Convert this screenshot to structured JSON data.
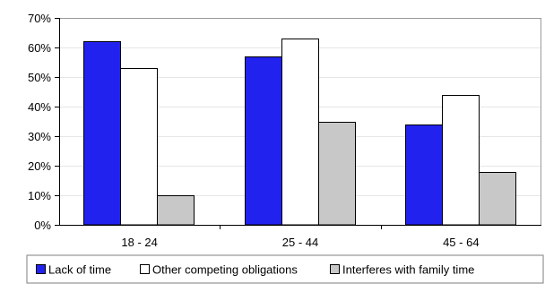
{
  "chart_data": {
    "type": "bar",
    "categories": [
      "18 - 24",
      "25 - 44",
      "45 - 64"
    ],
    "series": [
      {
        "name": "Lack of time",
        "values": [
          62,
          57,
          34
        ],
        "color": "#2222ee"
      },
      {
        "name": "Other competing obligations",
        "values": [
          53,
          63,
          44
        ],
        "color": "#ffffff"
      },
      {
        "name": "Interferes with family time",
        "values": [
          10,
          35,
          18
        ],
        "color": "#c8c8c8"
      }
    ],
    "ylim": [
      0,
      70
    ],
    "yticks": [
      0,
      10,
      20,
      30,
      40,
      50,
      60,
      70
    ],
    "ytick_labels": [
      "0%",
      "10%",
      "20%",
      "30%",
      "40%",
      "50%",
      "60%",
      "70%"
    ],
    "grid": true,
    "legend_position": "bottom"
  }
}
